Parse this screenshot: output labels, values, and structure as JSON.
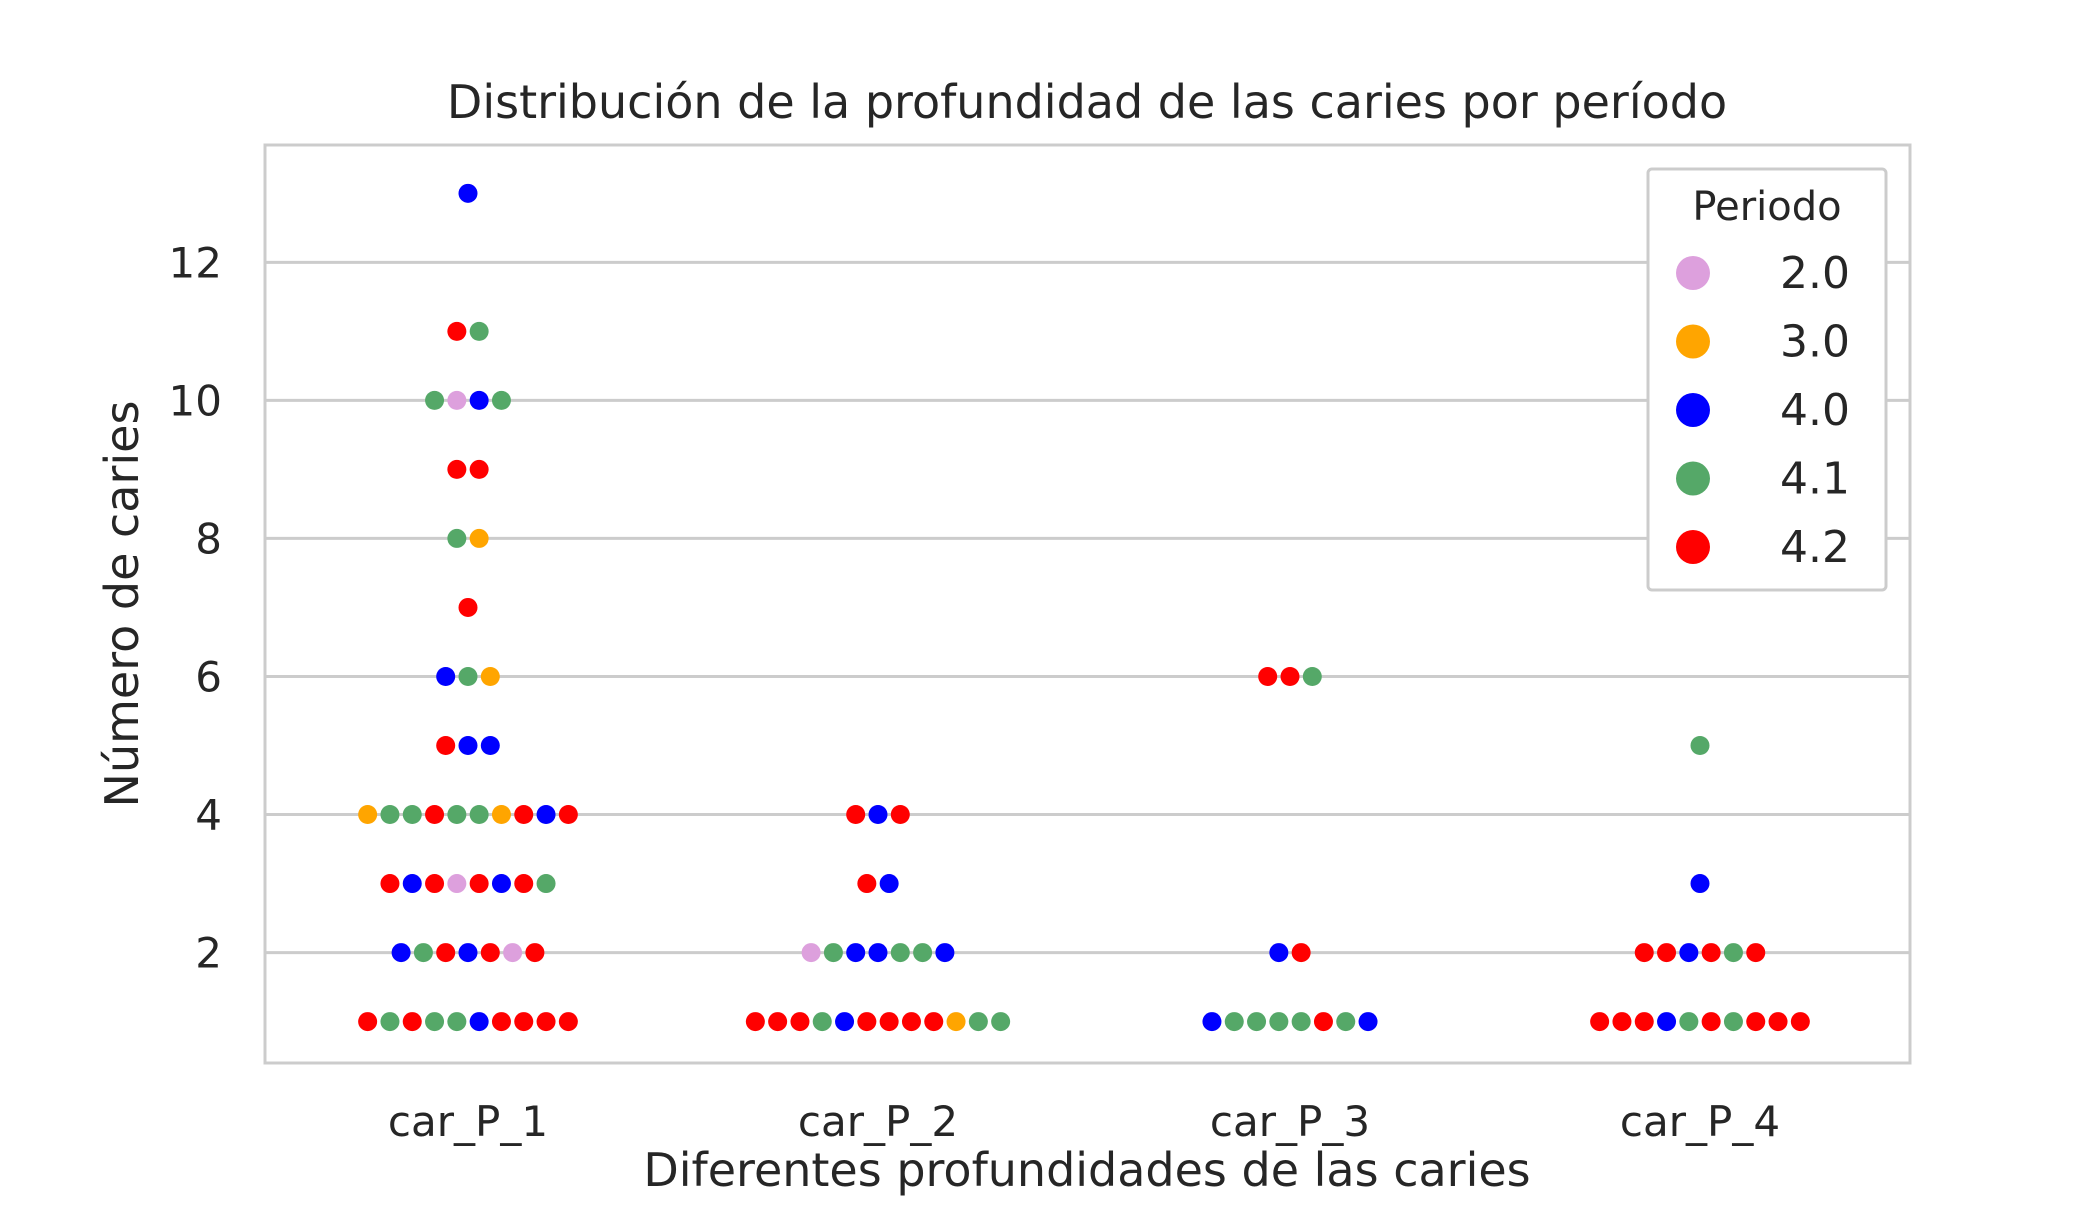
{
  "chart_data": {
    "type": "scatter",
    "title": "Distribución de la profundidad de las caries por período",
    "xlabel": "Diferentes profundidades de las caries",
    "ylabel": "Número de caries",
    "categories": [
      "car_P_1",
      "car_P_2",
      "car_P_3",
      "car_P_4"
    ],
    "y_ticks": [
      2,
      4,
      6,
      8,
      10,
      12
    ],
    "ylim": [
      0.4,
      13.7
    ],
    "grid": true,
    "legend": {
      "title": "Periodo",
      "placement": "top-right",
      "entries": [
        {
          "label": "2.0",
          "color": "#dda0dd"
        },
        {
          "label": "3.0",
          "color": "#ffa500"
        },
        {
          "label": "4.0",
          "color": "#0000ff"
        },
        {
          "label": "4.1",
          "color": "#55a868"
        },
        {
          "label": "4.2",
          "color": "#ff0000"
        }
      ]
    },
    "series": [
      {
        "category": "car_P_1",
        "points": [
          {
            "y": 13,
            "colors": [
              "4.0"
            ]
          },
          {
            "y": 11,
            "colors": [
              "4.2",
              "4.1"
            ]
          },
          {
            "y": 10,
            "colors": [
              "4.1",
              "2.0",
              "4.0",
              "4.1"
            ]
          },
          {
            "y": 9,
            "colors": [
              "4.2",
              "4.2"
            ]
          },
          {
            "y": 8,
            "colors": [
              "4.1",
              "3.0"
            ]
          },
          {
            "y": 7,
            "colors": [
              "4.2"
            ]
          },
          {
            "y": 6,
            "colors": [
              "4.0",
              "4.1",
              "3.0"
            ]
          },
          {
            "y": 5,
            "colors": [
              "4.2",
              "4.0",
              "4.0"
            ]
          },
          {
            "y": 4,
            "colors": [
              "3.0",
              "4.1",
              "4.1",
              "4.2",
              "4.1",
              "4.1",
              "3.0",
              "4.2",
              "4.0",
              "4.2"
            ]
          },
          {
            "y": 3,
            "colors": [
              "4.2",
              "4.0",
              "4.2",
              "2.0",
              "4.2",
              "4.0",
              "4.2",
              "4.1"
            ]
          },
          {
            "y": 2,
            "colors": [
              "4.0",
              "4.1",
              "4.2",
              "4.0",
              "4.2",
              "2.0",
              "4.2"
            ]
          },
          {
            "y": 1,
            "colors": [
              "4.2",
              "4.1",
              "4.2",
              "4.1",
              "4.1",
              "4.0",
              "4.2",
              "4.2",
              "4.2",
              "4.2"
            ]
          }
        ]
      },
      {
        "category": "car_P_2",
        "points": [
          {
            "y": 4,
            "colors": [
              "4.2",
              "4.0",
              "4.2"
            ]
          },
          {
            "y": 3,
            "colors": [
              "4.2",
              "4.0"
            ]
          },
          {
            "y": 2,
            "colors": [
              "2.0",
              "4.1",
              "4.0",
              "4.0",
              "4.1",
              "4.1",
              "4.0"
            ]
          },
          {
            "y": 1,
            "colors": [
              "4.2",
              "4.2",
              "4.2",
              "4.1",
              "4.0",
              "4.2",
              "4.2",
              "4.2",
              "4.2",
              "3.0",
              "4.1",
              "4.1"
            ]
          }
        ]
      },
      {
        "category": "car_P_3",
        "points": [
          {
            "y": 6,
            "colors": [
              "4.2",
              "4.2",
              "4.1"
            ]
          },
          {
            "y": 2,
            "colors": [
              "4.0",
              "4.2"
            ]
          },
          {
            "y": 1,
            "colors": [
              "4.0",
              "4.1",
              "4.1",
              "4.1",
              "4.1",
              "4.2",
              "4.1",
              "4.0"
            ]
          }
        ]
      },
      {
        "category": "car_P_4",
        "points": [
          {
            "y": 5,
            "colors": [
              "4.1"
            ]
          },
          {
            "y": 3,
            "colors": [
              "4.0"
            ]
          },
          {
            "y": 2,
            "colors": [
              "4.2",
              "4.2",
              "4.0",
              "4.2",
              "4.1",
              "4.2"
            ]
          },
          {
            "y": 1,
            "colors": [
              "4.2",
              "4.2",
              "4.2",
              "4.0",
              "4.1",
              "4.2",
              "4.1",
              "4.2",
              "4.2",
              "4.2"
            ]
          }
        ]
      }
    ]
  }
}
